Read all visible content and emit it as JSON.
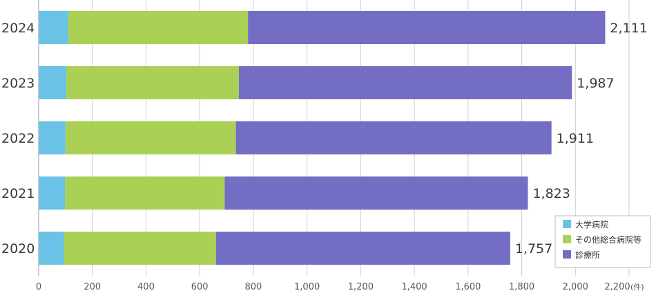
{
  "chart_data": {
    "type": "bar",
    "orientation": "horizontal",
    "stacked": true,
    "categories": [
      "2024",
      "2023",
      "2022",
      "2021",
      "2020"
    ],
    "series": [
      {
        "name": "大学病院",
        "values": [
          110,
          103,
          100,
          98,
          94
        ]
      },
      {
        "name": "その他総合病院等",
        "values": [
          670,
          643,
          635,
          595,
          567
        ]
      },
      {
        "name": "診療所",
        "values": [
          1331,
          1241,
          1176,
          1130,
          1096
        ]
      }
    ],
    "totals": [
      "2,111",
      "1,987",
      "1,911",
      "1,823",
      "1,757"
    ],
    "total_values": [
      2111,
      1987,
      1911,
      1823,
      1757
    ],
    "xlim": [
      0,
      2200
    ],
    "xticks": [
      0,
      200,
      400,
      600,
      800,
      1000,
      1200,
      1400,
      1600,
      1800,
      2000,
      2200
    ],
    "xtick_labels": [
      "0",
      "200",
      "400",
      "600",
      "800",
      "1,000",
      "1,200",
      "1,400",
      "1,600",
      "1,800",
      "2,000",
      "2,200"
    ],
    "x_unit": "(件)",
    "grid": true,
    "legend_position": "bottom-right",
    "colors": [
      "#6ac3e6",
      "#aad155",
      "#736ec3"
    ]
  }
}
